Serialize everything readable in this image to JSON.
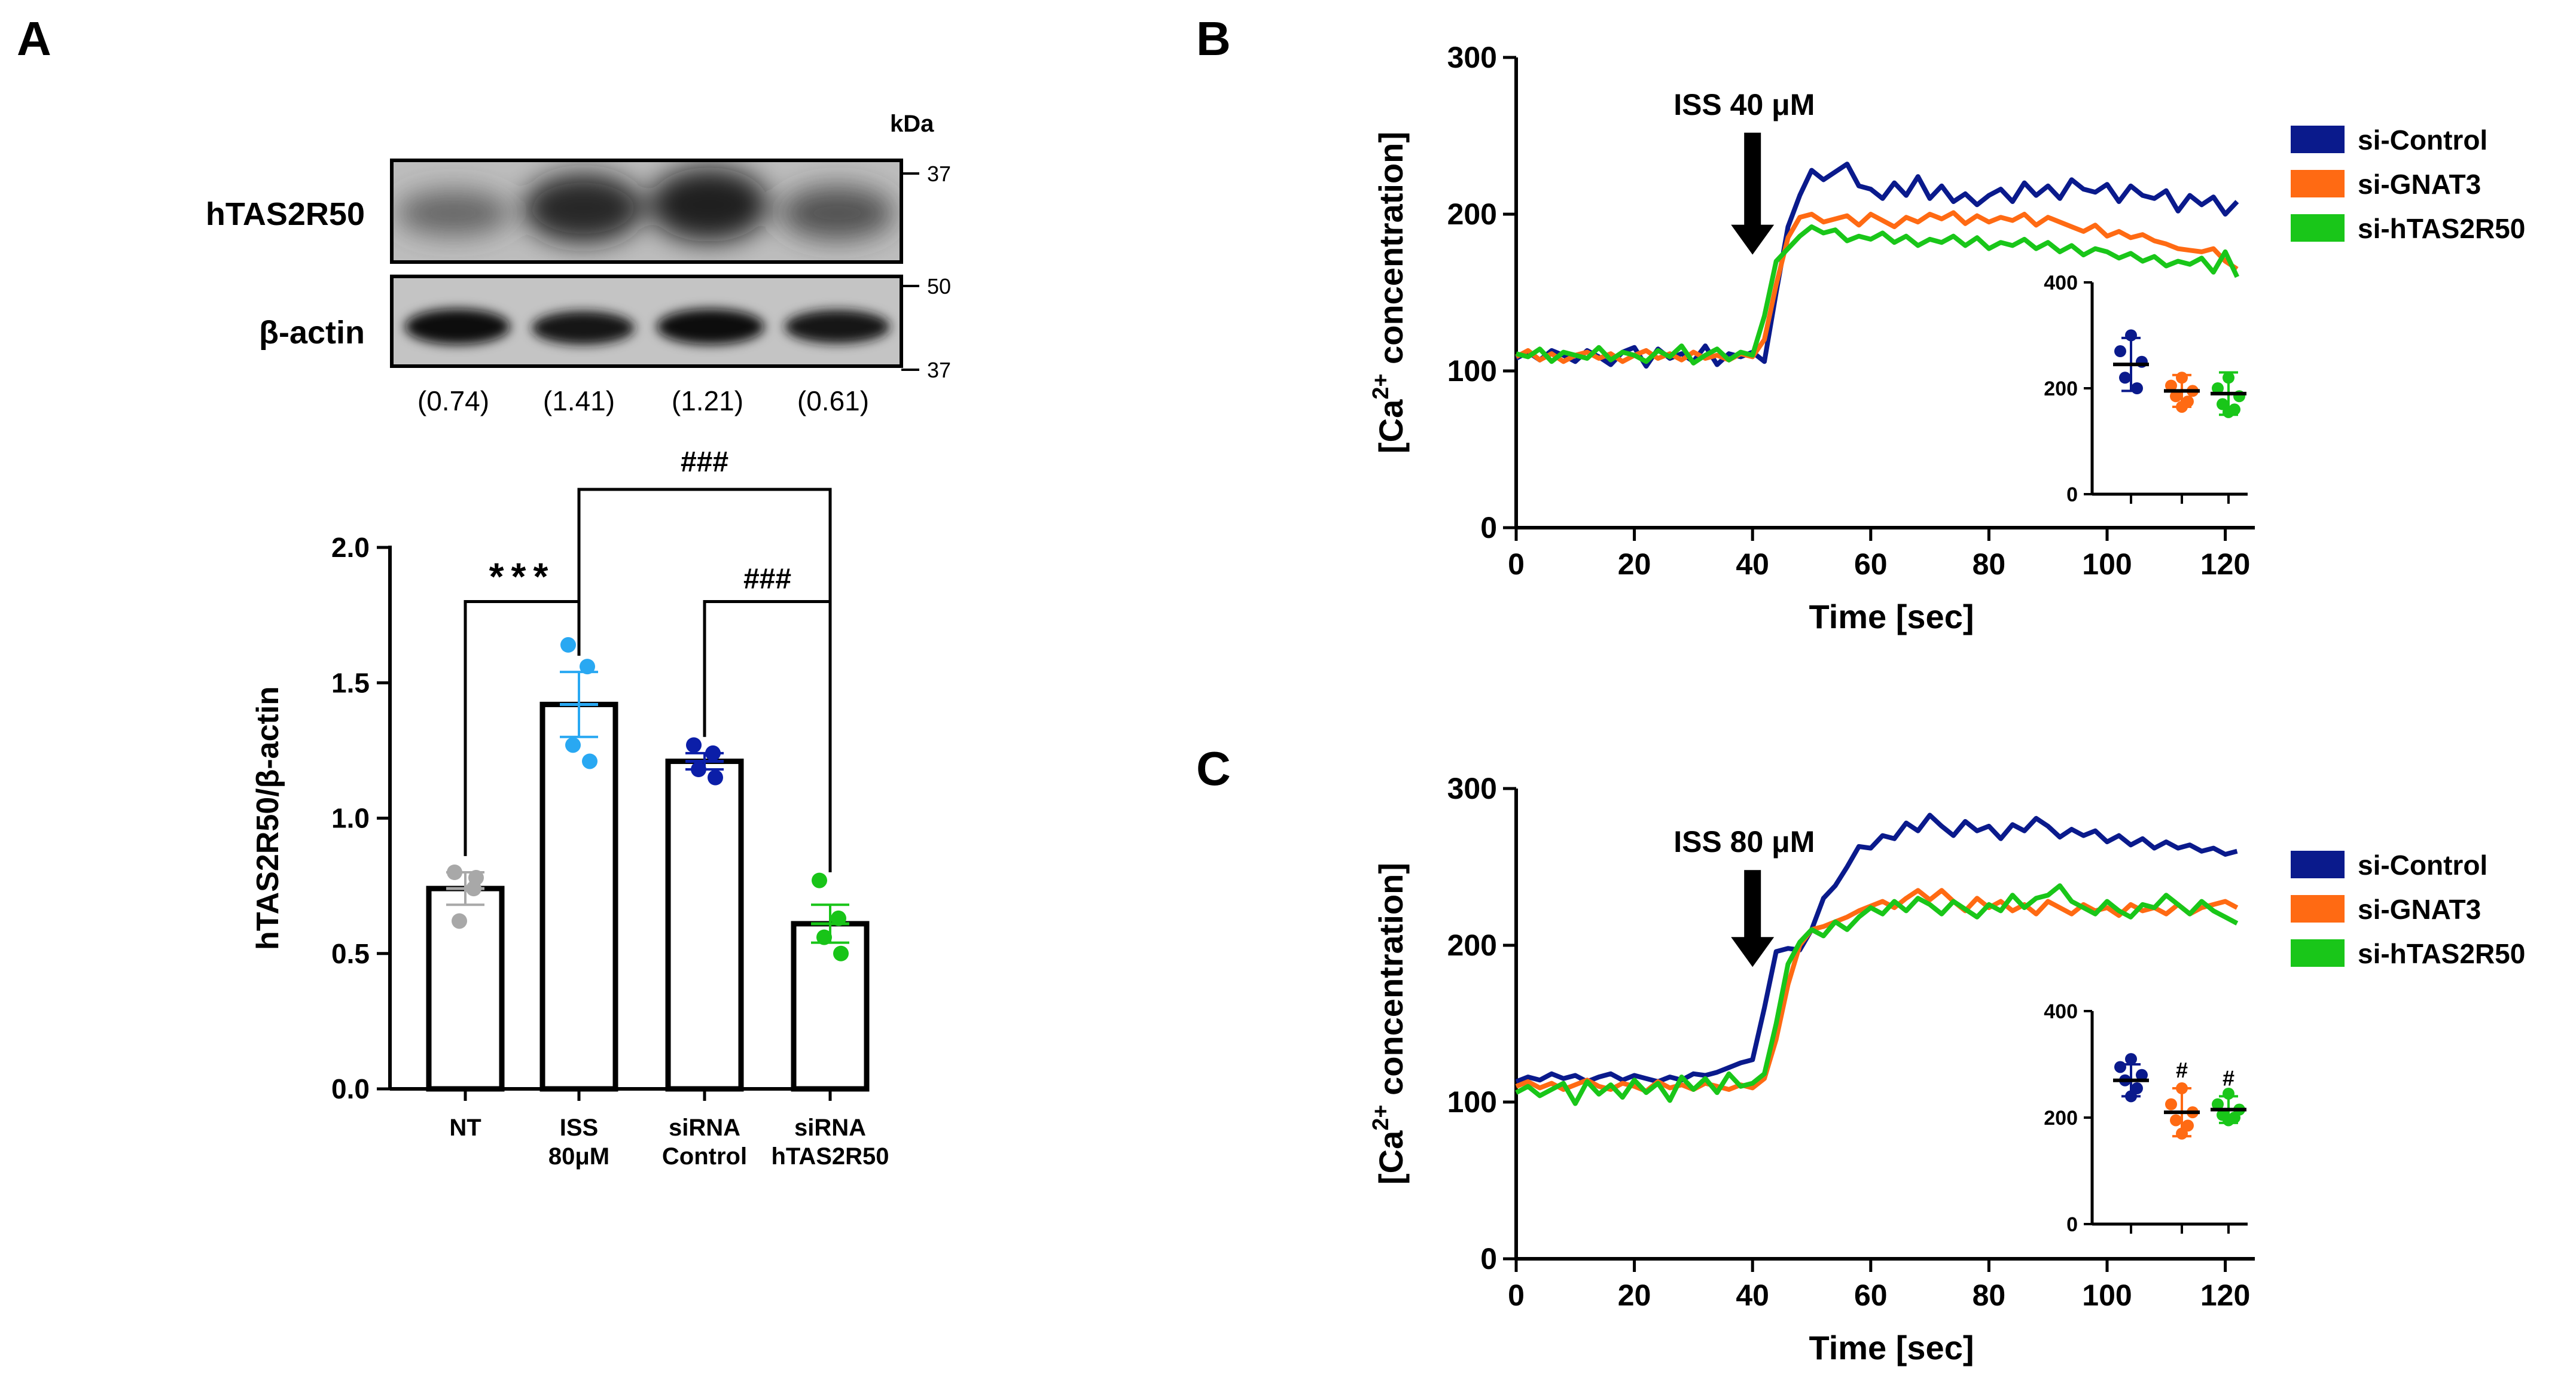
{
  "panel_labels": {
    "a": "A",
    "b": "B",
    "c": "C"
  },
  "colors": {
    "si_control": "#0a1a8c",
    "si_gnat3": "#ff6a13",
    "si_htas2r50": "#19c619",
    "nt": "#a8a8a8",
    "iss": "#29a8f2",
    "sirna_control": "#0b1ea8",
    "sirna_htas2r50": "#18c418"
  },
  "blot": {
    "kda_label": "kDa",
    "top_label": "hTAS2R50",
    "bottom_label": "β-actin",
    "markers": [
      "37",
      "50",
      "37"
    ],
    "ratios": [
      "(0.74)",
      "(1.41)",
      "(1.21)",
      "(0.61)"
    ]
  },
  "chart_data": [
    {
      "type": "bar",
      "panel": "A",
      "categories": [
        [
          "NT"
        ],
        [
          "ISS",
          "80μM"
        ],
        [
          "siRNA",
          "Control"
        ],
        [
          "siRNA",
          "hTAS2R50"
        ]
      ],
      "values": [
        0.74,
        1.42,
        1.21,
        0.61
      ],
      "sem": [
        0.06,
        0.12,
        0.03,
        0.07
      ],
      "points": [
        [
          0.8,
          0.74,
          0.62,
          0.78
        ],
        [
          1.64,
          1.56,
          1.27,
          1.21
        ],
        [
          1.27,
          1.24,
          1.18,
          1.15
        ],
        [
          0.77,
          0.63,
          0.56,
          0.5
        ]
      ],
      "ylabel": "hTAS2R50/β-actin",
      "ylim": [
        0,
        2.0
      ],
      "yticks": [
        "0.0",
        "0.5",
        "1.0",
        "1.5",
        "2.0"
      ],
      "annotations": [
        "***",
        "###",
        "###"
      ]
    },
    {
      "type": "line",
      "panel": "B",
      "annotation": "ISS 40 μM",
      "arrow_x": 40,
      "xlabel": "Time [sec]",
      "ylabel": "[Ca2+ concentration]",
      "ylabel_parts": [
        "[Ca",
        "2+",
        " concentration]"
      ],
      "xlim": [
        0,
        125
      ],
      "ylim": [
        0,
        300
      ],
      "xticks": [
        "0",
        "20",
        "40",
        "60",
        "80",
        "100",
        "120"
      ],
      "yticks": [
        "0",
        "100",
        "200",
        "300"
      ],
      "legend": [
        "si-Control",
        "si-GNAT3",
        "si-hTAS2R50"
      ],
      "series": [
        {
          "name": "si-Control",
          "x": [
            0,
            2,
            4,
            6,
            8,
            10,
            12,
            14,
            16,
            18,
            20,
            22,
            24,
            26,
            28,
            30,
            32,
            34,
            36,
            38,
            40,
            42,
            44,
            46,
            48,
            50,
            52,
            54,
            56,
            58,
            60,
            62,
            64,
            66,
            68,
            70,
            72,
            74,
            76,
            78,
            80,
            82,
            84,
            86,
            88,
            90,
            92,
            94,
            96,
            98,
            100,
            102,
            104,
            106,
            108,
            110,
            112,
            114,
            116,
            118,
            120,
            122
          ],
          "y": [
            108,
            112,
            107,
            113,
            110,
            106,
            113,
            109,
            104,
            112,
            115,
            103,
            114,
            108,
            111,
            106,
            116,
            104,
            111,
            109,
            112,
            106,
            150,
            192,
            212,
            228,
            222,
            227,
            232,
            218,
            216,
            210,
            220,
            212,
            224,
            210,
            218,
            208,
            213,
            206,
            212,
            216,
            208,
            220,
            212,
            218,
            210,
            222,
            216,
            214,
            219,
            208,
            218,
            212,
            210,
            215,
            202,
            212,
            206,
            211,
            200,
            208
          ]
        },
        {
          "name": "si-GNAT3",
          "x": [
            0,
            2,
            4,
            6,
            8,
            10,
            12,
            14,
            16,
            18,
            20,
            22,
            24,
            26,
            28,
            30,
            32,
            34,
            36,
            38,
            40,
            42,
            44,
            46,
            48,
            50,
            52,
            54,
            56,
            58,
            60,
            62,
            64,
            66,
            68,
            70,
            72,
            74,
            76,
            78,
            80,
            82,
            84,
            86,
            88,
            90,
            92,
            94,
            96,
            98,
            100,
            102,
            104,
            106,
            108,
            110,
            112,
            114,
            116,
            118,
            120,
            122
          ],
          "y": [
            109,
            113,
            107,
            111,
            106,
            110,
            112,
            108,
            111,
            106,
            110,
            113,
            108,
            111,
            107,
            112,
            108,
            110,
            107,
            111,
            109,
            120,
            155,
            185,
            198,
            200,
            195,
            197,
            199,
            193,
            200,
            196,
            192,
            198,
            195,
            200,
            197,
            201,
            194,
            199,
            195,
            198,
            196,
            200,
            193,
            198,
            195,
            192,
            189,
            193,
            186,
            189,
            185,
            187,
            183,
            181,
            178,
            177,
            176,
            178,
            170,
            165
          ]
        },
        {
          "name": "si-hTAS2R50",
          "x": [
            0,
            2,
            4,
            6,
            8,
            10,
            12,
            14,
            16,
            18,
            20,
            22,
            24,
            26,
            28,
            30,
            32,
            34,
            36,
            38,
            40,
            42,
            44,
            46,
            48,
            50,
            52,
            54,
            56,
            58,
            60,
            62,
            64,
            66,
            68,
            70,
            72,
            74,
            76,
            78,
            80,
            82,
            84,
            86,
            88,
            90,
            92,
            94,
            96,
            98,
            100,
            102,
            104,
            106,
            108,
            110,
            112,
            114,
            116,
            118,
            120,
            122
          ],
          "y": [
            111,
            109,
            114,
            106,
            112,
            110,
            108,
            115,
            107,
            112,
            110,
            106,
            113,
            109,
            116,
            105,
            110,
            114,
            107,
            112,
            110,
            135,
            170,
            178,
            186,
            192,
            188,
            190,
            183,
            186,
            184,
            188,
            182,
            186,
            180,
            184,
            182,
            186,
            180,
            185,
            178,
            182,
            180,
            184,
            178,
            182,
            176,
            180,
            174,
            178,
            176,
            172,
            175,
            170,
            173,
            167,
            170,
            168,
            172,
            163,
            176,
            160
          ]
        }
      ],
      "inset": {
        "ylim": [
          0,
          400
        ],
        "yticks": [
          "0",
          "200",
          "400"
        ],
        "means": [
          245,
          195,
          190
        ],
        "sd": [
          50,
          30,
          40
        ],
        "points": [
          [
            300,
            270,
            250,
            220,
            200
          ],
          [
            220,
            205,
            195,
            185,
            175,
            165
          ],
          [
            220,
            200,
            185,
            170,
            160,
            155
          ]
        ],
        "markers": [
          "",
          "",
          ""
        ]
      }
    },
    {
      "type": "line",
      "panel": "C",
      "annotation": "ISS 80 μM",
      "arrow_x": 40,
      "xlabel": "Time [sec]",
      "ylabel": "[Ca2+ concentration]",
      "ylabel_parts": [
        "[Ca",
        "2+",
        " concentration]"
      ],
      "xlim": [
        0,
        125
      ],
      "ylim": [
        0,
        300
      ],
      "xticks": [
        "0",
        "20",
        "40",
        "60",
        "80",
        "100",
        "120"
      ],
      "yticks": [
        "0",
        "100",
        "200",
        "300"
      ],
      "legend": [
        "si-Control",
        "si-GNAT3",
        "si-hTAS2R50"
      ],
      "series": [
        {
          "name": "si-Control",
          "x": [
            0,
            2,
            4,
            6,
            8,
            10,
            12,
            14,
            16,
            18,
            20,
            22,
            24,
            26,
            28,
            30,
            32,
            34,
            36,
            38,
            40,
            42,
            44,
            46,
            48,
            50,
            52,
            54,
            56,
            58,
            60,
            62,
            64,
            66,
            68,
            70,
            72,
            74,
            76,
            78,
            80,
            82,
            84,
            86,
            88,
            90,
            92,
            94,
            96,
            98,
            100,
            102,
            104,
            106,
            108,
            110,
            112,
            114,
            116,
            118,
            120,
            122
          ],
          "y": [
            113,
            116,
            114,
            118,
            115,
            117,
            113,
            116,
            118,
            114,
            117,
            115,
            113,
            116,
            114,
            118,
            117,
            119,
            122,
            125,
            127,
            160,
            196,
            198,
            197,
            210,
            230,
            238,
            250,
            263,
            262,
            270,
            268,
            278,
            273,
            283,
            276,
            270,
            279,
            273,
            276,
            268,
            277,
            273,
            281,
            276,
            269,
            274,
            270,
            273,
            266,
            270,
            264,
            268,
            262,
            266,
            262,
            264,
            260,
            262,
            258,
            260
          ]
        },
        {
          "name": "si-GNAT3",
          "x": [
            0,
            2,
            4,
            6,
            8,
            10,
            12,
            14,
            16,
            18,
            20,
            22,
            24,
            26,
            28,
            30,
            32,
            34,
            36,
            38,
            40,
            42,
            44,
            46,
            48,
            50,
            52,
            54,
            56,
            58,
            60,
            62,
            64,
            66,
            68,
            70,
            72,
            74,
            76,
            78,
            80,
            82,
            84,
            86,
            88,
            90,
            92,
            94,
            96,
            98,
            100,
            102,
            104,
            106,
            108,
            110,
            112,
            114,
            116,
            118,
            120,
            122
          ],
          "y": [
            110,
            113,
            109,
            112,
            108,
            111,
            114,
            110,
            108,
            112,
            110,
            107,
            113,
            109,
            111,
            108,
            112,
            110,
            108,
            111,
            109,
            115,
            140,
            175,
            200,
            210,
            212,
            215,
            218,
            222,
            225,
            228,
            224,
            230,
            235,
            229,
            235,
            228,
            222,
            230,
            224,
            228,
            222,
            226,
            220,
            228,
            224,
            220,
            226,
            222,
            224,
            219,
            226,
            222,
            224,
            220,
            226,
            220,
            224,
            226,
            228,
            224
          ]
        },
        {
          "name": "si-hTAS2R50",
          "x": [
            0,
            2,
            4,
            6,
            8,
            10,
            12,
            14,
            16,
            18,
            20,
            22,
            24,
            26,
            28,
            30,
            32,
            34,
            36,
            38,
            40,
            42,
            44,
            46,
            48,
            50,
            52,
            54,
            56,
            58,
            60,
            62,
            64,
            66,
            68,
            70,
            72,
            74,
            76,
            78,
            80,
            82,
            84,
            86,
            88,
            90,
            92,
            94,
            96,
            98,
            100,
            102,
            104,
            106,
            108,
            110,
            112,
            114,
            116,
            118,
            120,
            122
          ],
          "y": [
            106,
            110,
            104,
            108,
            112,
            99,
            113,
            105,
            111,
            103,
            114,
            106,
            112,
            101,
            116,
            108,
            115,
            106,
            118,
            110,
            112,
            118,
            150,
            188,
            202,
            210,
            206,
            215,
            210,
            218,
            224,
            220,
            228,
            222,
            230,
            226,
            220,
            228,
            223,
            218,
            226,
            222,
            232,
            224,
            230,
            232,
            238,
            228,
            224,
            220,
            228,
            222,
            218,
            226,
            224,
            232,
            226,
            220,
            228,
            222,
            218,
            214
          ]
        }
      ],
      "inset": {
        "ylim": [
          0,
          400
        ],
        "yticks": [
          "0",
          "200",
          "400"
        ],
        "means": [
          270,
          210,
          215
        ],
        "sd": [
          30,
          45,
          25
        ],
        "points": [
          [
            310,
            295,
            280,
            270,
            255,
            240
          ],
          [
            255,
            225,
            210,
            195,
            185,
            170
          ],
          [
            245,
            225,
            215,
            205,
            200,
            195
          ]
        ],
        "markers": [
          "",
          "#",
          "#"
        ]
      }
    }
  ]
}
